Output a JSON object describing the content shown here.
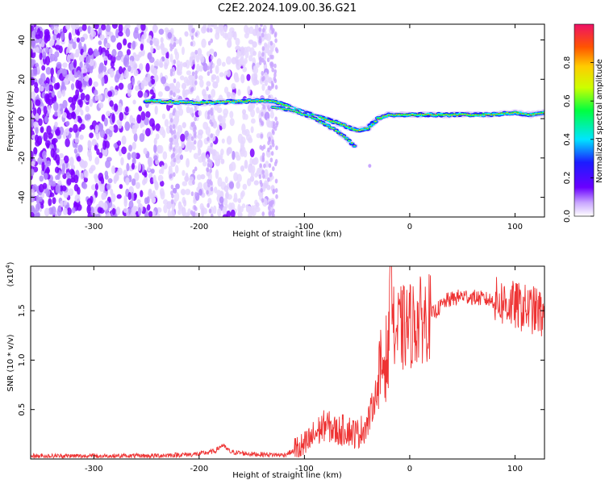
{
  "figure": {
    "title": "C2E2.2024.109.00.36.G21"
  },
  "chart_data": [
    {
      "type": "heatmap",
      "title": "C2E2.2024.109.00.36.G21",
      "xlabel": "Height of straight line (km)",
      "ylabel": "Frequency (Hz)",
      "xlim": [
        -360,
        128
      ],
      "ylim": [
        -50,
        48
      ],
      "xticks": [
        -300,
        -200,
        -100,
        0,
        100
      ],
      "yticks": [
        -40,
        -20,
        0,
        20,
        40
      ],
      "grid": false,
      "description_series": {
        "noise_region_x": [
          -360,
          -130
        ],
        "carrier_track": {
          "x": [
            -250,
            -200,
            -150,
            -130,
            -100,
            -70,
            -60,
            -50,
            -40,
            -30,
            -20,
            -10,
            0,
            25,
            50,
            75,
            100,
            115,
            128
          ],
          "y": [
            9,
            8,
            9,
            9,
            3,
            -2,
            -4,
            -6,
            -5,
            0,
            2,
            2,
            2,
            2,
            2,
            2,
            3,
            2,
            3
          ]
        },
        "secondary_track": {
          "x": [
            -130,
            -110,
            -100,
            -90,
            -80,
            -70,
            -60,
            -52
          ],
          "y": [
            6,
            4,
            2,
            0,
            -3,
            -6,
            -10,
            -14
          ]
        }
      },
      "colorbar": {
        "label": "Normalized spectral amplitude",
        "range": [
          0,
          1
        ],
        "ticks": [
          "0.0",
          "0.2",
          "0.4",
          "0.6",
          "0.8"
        ]
      }
    },
    {
      "type": "line",
      "xlabel": "Height of straight line (km)",
      "ylabel": "SNR (10 * v/v)",
      "scale_note": "(x10",
      "scale_exp": "4",
      "scale_close": ")",
      "xlim": [
        -360,
        128
      ],
      "ylim": [
        0,
        1.95
      ],
      "xticks": [
        -300,
        -200,
        -100,
        0,
        100
      ],
      "yticks": [
        0.5,
        1.0,
        1.5
      ],
      "ytick_labels": [
        "0.5",
        "1.0",
        "1.5"
      ],
      "color": "#ee3333",
      "series": [
        {
          "x": [
            -360,
            -300,
            -250,
            -200,
            -185,
            -178,
            -170,
            -150,
            -120,
            -100,
            -90,
            -80,
            -70,
            -60,
            -50,
            -40,
            -30,
            -25,
            -20,
            -18,
            -15,
            -10,
            0,
            20,
            35,
            50,
            70,
            90,
            100,
            110,
            120,
            128
          ],
          "y": [
            0.03,
            0.03,
            0.03,
            0.05,
            0.08,
            0.14,
            0.07,
            0.05,
            0.04,
            0.12,
            0.25,
            0.35,
            0.28,
            0.3,
            0.25,
            0.35,
            0.75,
            1.0,
            1.05,
            1.95,
            1.25,
            1.3,
            1.35,
            1.45,
            1.6,
            1.65,
            1.62,
            1.58,
            1.55,
            1.52,
            1.5,
            1.45
          ]
        }
      ]
    }
  ]
}
